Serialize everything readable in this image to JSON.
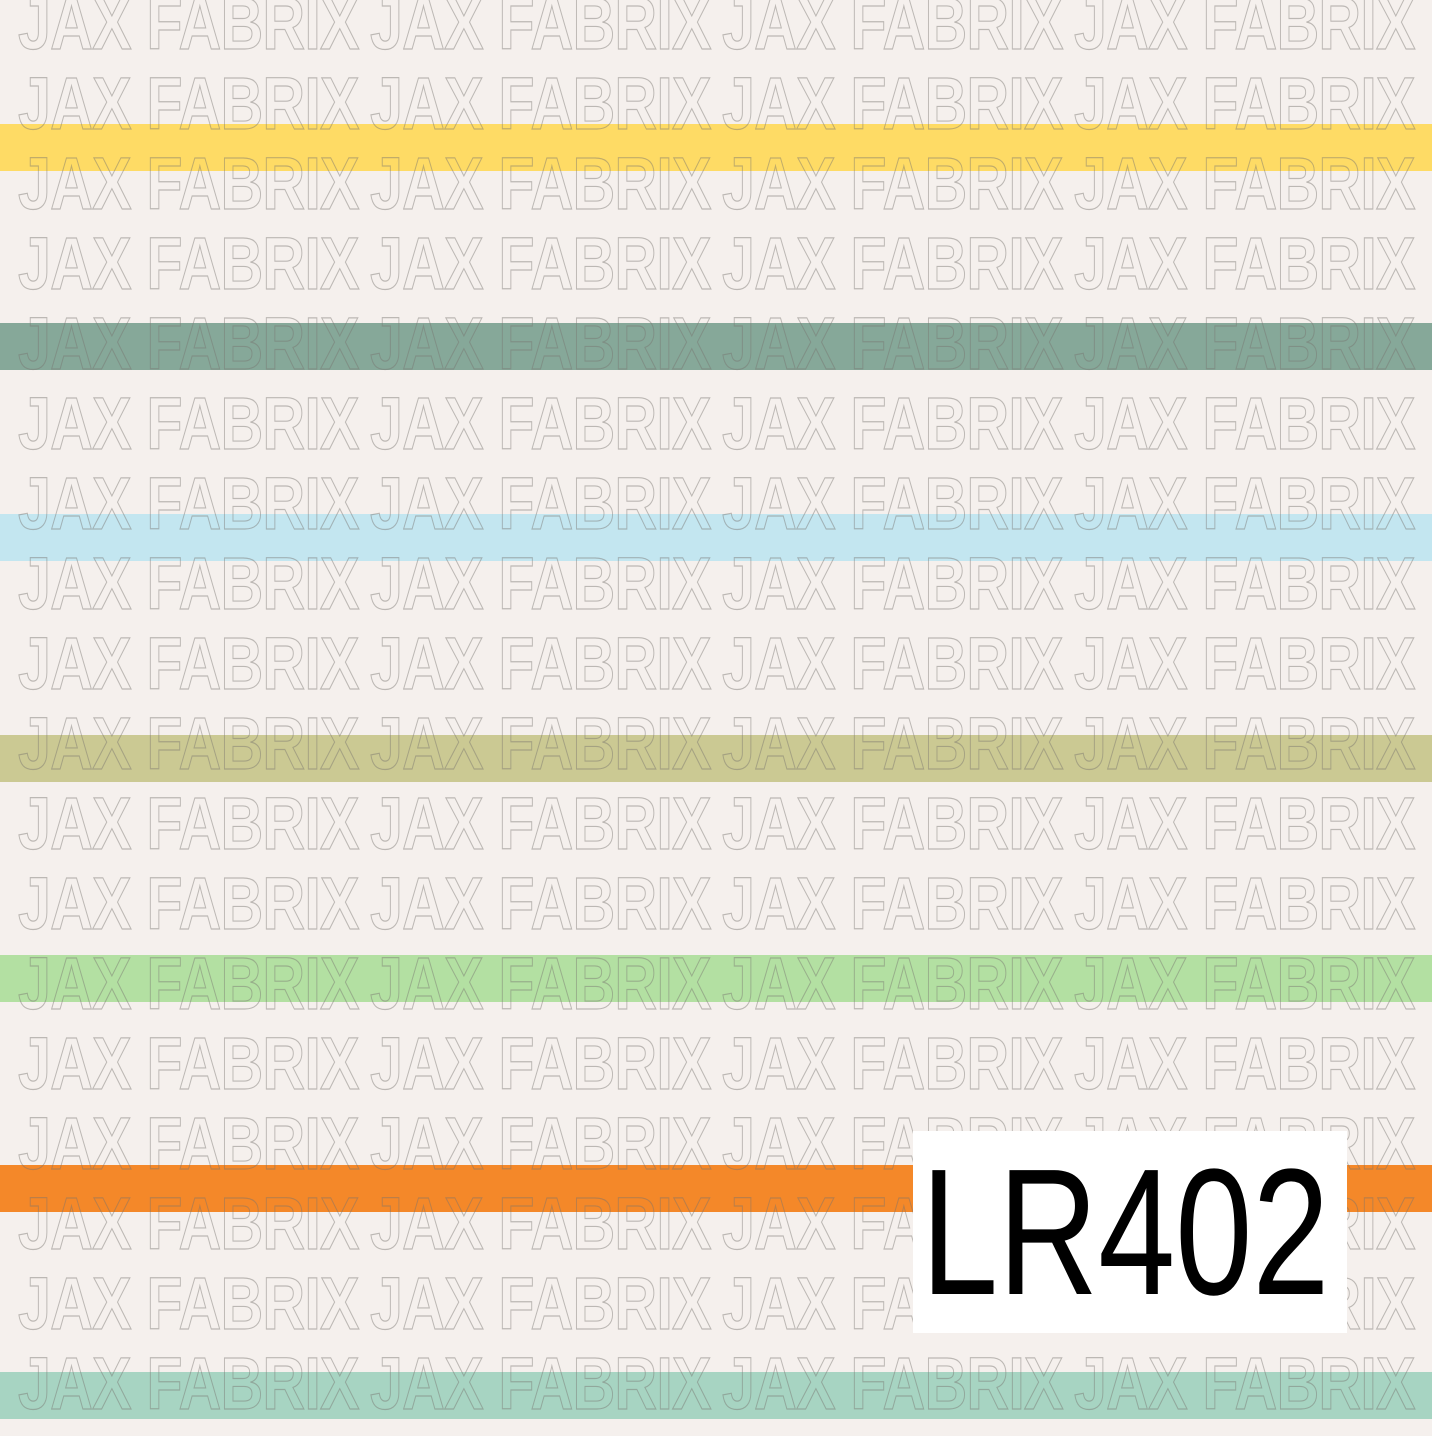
{
  "watermark": {
    "text": "JAX FABRIX"
  },
  "label": {
    "code": "LR402"
  },
  "stripes": [
    {
      "name": "yellow",
      "color": "#fedb65"
    },
    {
      "name": "sage",
      "color": "#86a899"
    },
    {
      "name": "light-blue",
      "color": "#c3e6f0"
    },
    {
      "name": "olive",
      "color": "#cbc993"
    },
    {
      "name": "green",
      "color": "#b3e0a2"
    },
    {
      "name": "orange",
      "color": "#f48829"
    },
    {
      "name": "mint",
      "color": "#a7d4c2"
    }
  ],
  "colors": {
    "background": "#f5f0ed"
  }
}
